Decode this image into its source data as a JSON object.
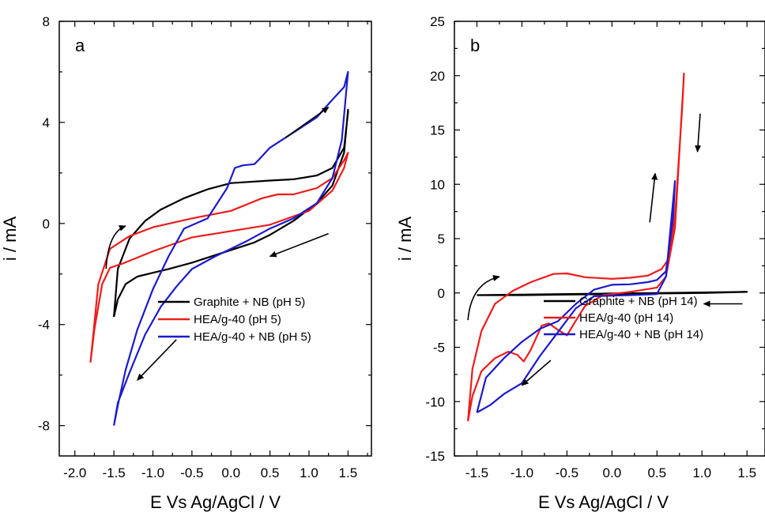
{
  "chart_data": [
    {
      "type": "line",
      "panel_label": "a",
      "xlabel": "E Vs Ag/AgCl / V",
      "ylabel": "i / mA",
      "xlim": [
        -2.2,
        1.8
      ],
      "ylim": [
        -9.2,
        8
      ],
      "xticks": [
        -2.0,
        -1.5,
        -1.0,
        -0.5,
        0.0,
        0.5,
        1.0,
        1.5
      ],
      "xtick_labels": [
        "-2.0",
        "-1.5",
        "-1.0",
        "-0.5",
        "0.0",
        "0.5",
        "1.0",
        "1.5"
      ],
      "yticks": [
        -8,
        -4,
        0,
        4,
        8
      ],
      "ytick_labels": [
        "-8",
        "-4",
        "0",
        "4",
        "8"
      ],
      "grid": false,
      "legend_position": "bottom-right",
      "series": [
        {
          "name": "Graphite + NB (pH 5)",
          "color": "#000000",
          "points": [
            [
              -1.5,
              -3.7
            ],
            [
              -1.45,
              -3.0
            ],
            [
              -1.35,
              -2.4
            ],
            [
              -1.2,
              -2.1
            ],
            [
              -1.0,
              -1.95
            ],
            [
              -0.8,
              -1.8
            ],
            [
              -0.5,
              -1.55
            ],
            [
              0.0,
              -1.05
            ],
            [
              0.3,
              -0.75
            ],
            [
              0.5,
              -0.45
            ],
            [
              0.8,
              0.1
            ],
            [
              1.1,
              0.8
            ],
            [
              1.3,
              1.5
            ],
            [
              1.45,
              2.8
            ],
            [
              1.5,
              4.5
            ],
            [
              1.5,
              4.4
            ],
            [
              1.45,
              3.0
            ],
            [
              1.3,
              2.2
            ],
            [
              1.1,
              1.9
            ],
            [
              0.8,
              1.75
            ],
            [
              0.5,
              1.7
            ],
            [
              0.0,
              1.6
            ],
            [
              -0.3,
              1.35
            ],
            [
              -0.6,
              1.0
            ],
            [
              -0.9,
              0.55
            ],
            [
              -1.1,
              0.1
            ],
            [
              -1.3,
              -0.6
            ],
            [
              -1.45,
              -1.8
            ],
            [
              -1.5,
              -3.7
            ]
          ]
        },
        {
          "name": "HEA/g-40 (pH 5)",
          "color": "#ee1c1c",
          "points": [
            [
              -1.8,
              -5.5
            ],
            [
              -1.75,
              -4.2
            ],
            [
              -1.65,
              -2.4
            ],
            [
              -1.55,
              -1.75
            ],
            [
              -1.4,
              -1.6
            ],
            [
              -1.2,
              -1.35
            ],
            [
              -1.0,
              -1.1
            ],
            [
              -0.5,
              -0.55
            ],
            [
              0.0,
              -0.3
            ],
            [
              0.5,
              -0.05
            ],
            [
              1.0,
              0.5
            ],
            [
              1.3,
              1.3
            ],
            [
              1.45,
              2.2
            ],
            [
              1.5,
              2.8
            ],
            [
              1.45,
              2.5
            ],
            [
              1.3,
              1.8
            ],
            [
              1.1,
              1.4
            ],
            [
              0.8,
              1.15
            ],
            [
              0.6,
              1.15
            ],
            [
              0.4,
              1.0
            ],
            [
              0.0,
              0.5
            ],
            [
              -0.5,
              0.2
            ],
            [
              -1.0,
              -0.15
            ],
            [
              -1.3,
              -0.5
            ],
            [
              -1.55,
              -1.0
            ],
            [
              -1.7,
              -2.4
            ],
            [
              -1.8,
              -5.5
            ]
          ]
        },
        {
          "name": "HEA/g-40 + NB (pH 5)",
          "color": "#1a1acc",
          "points": [
            [
              -1.5,
              -8.0
            ],
            [
              -1.45,
              -7.1
            ],
            [
              -1.3,
              -5.9
            ],
            [
              -1.1,
              -4.4
            ],
            [
              -0.9,
              -3.3
            ],
            [
              -0.7,
              -2.5
            ],
            [
              -0.5,
              -1.8
            ],
            [
              -0.2,
              -1.3
            ],
            [
              0.2,
              -0.7
            ],
            [
              0.5,
              -0.2
            ],
            [
              0.8,
              0.2
            ],
            [
              1.1,
              0.8
            ],
            [
              1.3,
              1.8
            ],
            [
              1.42,
              3.3
            ],
            [
              1.5,
              6.0
            ],
            [
              1.45,
              5.4
            ],
            [
              1.3,
              4.9
            ],
            [
              1.1,
              4.2
            ],
            [
              0.8,
              3.6
            ],
            [
              0.5,
              3.0
            ],
            [
              0.35,
              2.5
            ],
            [
              0.3,
              2.35
            ],
            [
              0.15,
              2.3
            ],
            [
              0.05,
              2.2
            ],
            [
              -0.05,
              1.4
            ],
            [
              -0.3,
              0.2
            ],
            [
              -0.6,
              -0.2
            ],
            [
              -0.8,
              -1.3
            ],
            [
              -1.0,
              -2.6
            ],
            [
              -1.2,
              -4.2
            ],
            [
              -1.35,
              -5.8
            ],
            [
              -1.45,
              -7.2
            ],
            [
              -1.5,
              -8.0
            ]
          ]
        }
      ],
      "annotations": [
        {
          "type": "arrow",
          "from": [
            -1.6,
            -1.8
          ],
          "to": [
            -1.35,
            -0.1
          ],
          "curved": true
        },
        {
          "type": "arrow",
          "from": [
            0.7,
            3.4
          ],
          "to": [
            1.25,
            4.6
          ]
        },
        {
          "type": "arrow",
          "from": [
            1.25,
            -0.4
          ],
          "to": [
            0.5,
            -1.3
          ]
        },
        {
          "type": "arrow",
          "from": [
            -0.7,
            -4.6
          ],
          "to": [
            -1.2,
            -6.2
          ]
        }
      ]
    },
    {
      "type": "line",
      "panel_label": "b",
      "xlabel": "E Vs Ag/AgCl / V",
      "ylabel": "i / mA",
      "xlim": [
        -1.75,
        1.7
      ],
      "ylim": [
        -15,
        25
      ],
      "xticks": [
        -1.5,
        -1.0,
        -0.5,
        0.0,
        0.5,
        1.0,
        1.5
      ],
      "xtick_labels": [
        "-1.5",
        "-1.0",
        "-0.5",
        "0.0",
        "0.5",
        "1.0",
        "1.5"
      ],
      "yticks": [
        -15,
        -10,
        -5,
        0,
        5,
        10,
        15,
        20,
        25
      ],
      "ytick_labels": [
        "-15",
        "-10",
        "-5",
        "0",
        "5",
        "10",
        "15",
        "20",
        "25"
      ],
      "grid": false,
      "legend_position": "bottom-right",
      "series": [
        {
          "name": "Graphite + NB (pH 14)",
          "color": "#000000",
          "points": [
            [
              -1.5,
              -0.2
            ],
            [
              -1.0,
              -0.15
            ],
            [
              -0.5,
              -0.1
            ],
            [
              0.0,
              -0.05
            ],
            [
              0.5,
              0.0
            ],
            [
              1.0,
              0.05
            ],
            [
              1.5,
              0.1
            ],
            [
              1.0,
              0.0
            ],
            [
              0.5,
              -0.05
            ],
            [
              0.0,
              -0.1
            ],
            [
              -0.5,
              -0.15
            ],
            [
              -1.0,
              -0.2
            ],
            [
              -1.5,
              -0.2
            ]
          ]
        },
        {
          "name": "HEA/g-40 (pH 14)",
          "color": "#ee1c1c",
          "points": [
            [
              -1.6,
              -11.8
            ],
            [
              -1.55,
              -9.5
            ],
            [
              -1.45,
              -7.2
            ],
            [
              -1.3,
              -6.0
            ],
            [
              -1.15,
              -5.4
            ],
            [
              -1.05,
              -5.7
            ],
            [
              -0.98,
              -6.3
            ],
            [
              -0.9,
              -5.2
            ],
            [
              -0.78,
              -3.0
            ],
            [
              -0.7,
              -2.8
            ],
            [
              -0.6,
              -3.4
            ],
            [
              -0.5,
              -3.9
            ],
            [
              -0.42,
              -2.8
            ],
            [
              -0.3,
              -1.2
            ],
            [
              -0.1,
              -0.2
            ],
            [
              0.2,
              0.1
            ],
            [
              0.5,
              0.5
            ],
            [
              0.6,
              1.5
            ],
            [
              0.7,
              6.0
            ],
            [
              0.8,
              20.2
            ],
            [
              0.78,
              17.0
            ],
            [
              0.7,
              7.0
            ],
            [
              0.62,
              3.0
            ],
            [
              0.55,
              2.2
            ],
            [
              0.4,
              1.6
            ],
            [
              0.2,
              1.4
            ],
            [
              0.0,
              1.3
            ],
            [
              -0.3,
              1.45
            ],
            [
              -0.5,
              1.8
            ],
            [
              -0.65,
              1.75
            ],
            [
              -0.9,
              1.0
            ],
            [
              -1.1,
              0.2
            ],
            [
              -1.3,
              -1.0
            ],
            [
              -1.45,
              -3.5
            ],
            [
              -1.55,
              -7.0
            ],
            [
              -1.6,
              -11.8
            ]
          ]
        },
        {
          "name": "HEA/g-40 + NB (pH 14)",
          "color": "#1a1acc",
          "points": [
            [
              -1.5,
              -11.0
            ],
            [
              -1.35,
              -10.3
            ],
            [
              -1.2,
              -9.3
            ],
            [
              -1.0,
              -8.3
            ],
            [
              -0.8,
              -5.8
            ],
            [
              -0.6,
              -3.6
            ],
            [
              -0.4,
              -1.4
            ],
            [
              -0.2,
              -0.3
            ],
            [
              0.2,
              -0.2
            ],
            [
              0.5,
              -0.1
            ],
            [
              0.6,
              1.5
            ],
            [
              0.7,
              10.3
            ],
            [
              0.68,
              7.0
            ],
            [
              0.6,
              2.0
            ],
            [
              0.5,
              1.2
            ],
            [
              0.4,
              1.0
            ],
            [
              0.2,
              0.8
            ],
            [
              0.0,
              0.75
            ],
            [
              -0.2,
              0.3
            ],
            [
              -0.4,
              -1.0
            ],
            [
              -0.6,
              -2.6
            ],
            [
              -0.8,
              -3.3
            ],
            [
              -1.0,
              -4.5
            ],
            [
              -1.2,
              -6.0
            ],
            [
              -1.4,
              -7.8
            ],
            [
              -1.5,
              -11.0
            ]
          ]
        }
      ],
      "annotations": [
        {
          "type": "arrow",
          "from": [
            -1.6,
            -2.5
          ],
          "to": [
            -1.25,
            1.5
          ],
          "curved": true
        },
        {
          "type": "arrow",
          "from": [
            0.42,
            6.5
          ],
          "to": [
            0.48,
            11.0
          ]
        },
        {
          "type": "arrow",
          "from": [
            0.98,
            16.5
          ],
          "to": [
            0.95,
            13.0
          ]
        },
        {
          "type": "arrow",
          "from": [
            1.45,
            -1.0
          ],
          "to": [
            1.02,
            -1.0
          ]
        },
        {
          "type": "arrow",
          "from": [
            -0.68,
            -6.2
          ],
          "to": [
            -1.0,
            -8.5
          ]
        }
      ]
    }
  ]
}
